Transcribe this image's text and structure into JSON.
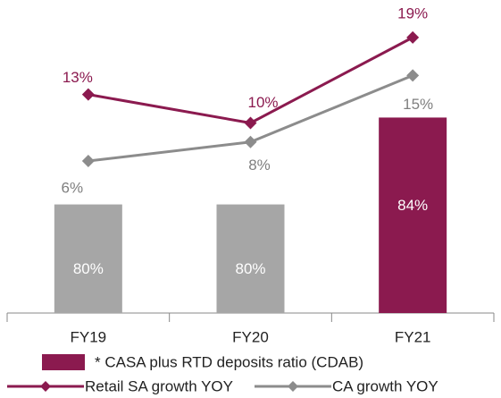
{
  "chart_data": {
    "type": "bar",
    "categories": [
      "FY19",
      "FY20",
      "FY21"
    ],
    "ylim": [
      75,
      89
    ],
    "y2lim": [
      -10,
      22
    ],
    "series": [
      {
        "name": "* CASA plus RTD deposits ratio (CDAB)",
        "type": "bar",
        "color": "#8b1a4f",
        "colors": [
          "#a6a6a6",
          "#a6a6a6",
          "#8b1a4f"
        ],
        "values": [
          80,
          80,
          84
        ],
        "value_labels": [
          "80%",
          "80%",
          "84%"
        ]
      },
      {
        "name": "Retail SA growth YOY",
        "type": "line",
        "axis": "y2",
        "color": "#8b1a4f",
        "values": [
          13,
          10,
          19
        ],
        "value_labels": [
          "13%",
          "10%",
          "19%"
        ]
      },
      {
        "name": "CA growth YOY",
        "type": "line",
        "axis": "y2",
        "color": "#8c8c8c",
        "label_color": "#7f7f7f",
        "values": [
          6,
          8,
          15
        ],
        "value_labels": [
          "6%",
          "8%",
          "15%"
        ]
      }
    ]
  }
}
